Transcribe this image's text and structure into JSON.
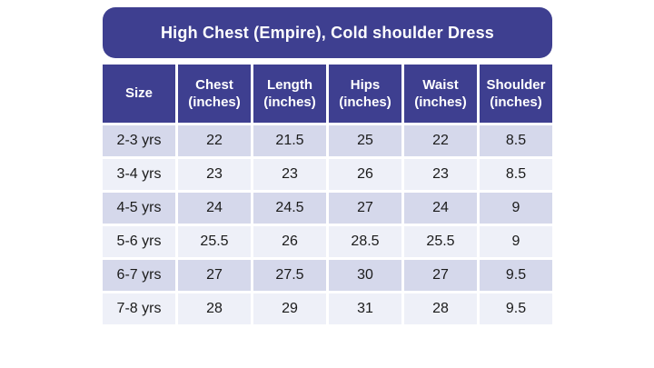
{
  "title": "High Chest (Empire), Cold shoulder Dress",
  "colors": {
    "page_background": "#FFFFFF",
    "banner_background": "#3E3F90",
    "header_background": "#3E3F90",
    "header_text": "#FFFFFF",
    "cell_text": "#1B1B1B",
    "row_odd": "#D5D8EB",
    "row_even": "#EEF0F8"
  },
  "chart_data": {
    "type": "table",
    "title": "High Chest (Empire), Cold shoulder Dress",
    "columns": [
      "Size",
      "Chest\n(inches)",
      "Length\n(inches)",
      "Hips\n(inches)",
      "Waist\n(inches)",
      "Shoulder\n(inches)"
    ],
    "rows": [
      [
        "2-3 yrs",
        "22",
        "21.5",
        "25",
        "22",
        "8.5"
      ],
      [
        "3-4 yrs",
        "23",
        "23",
        "26",
        "23",
        "8.5"
      ],
      [
        "4-5 yrs",
        "24",
        "24.5",
        "27",
        "24",
        "9"
      ],
      [
        "5-6 yrs",
        "25.5",
        "26",
        "28.5",
        "25.5",
        "9"
      ],
      [
        "6-7 yrs",
        "27",
        "27.5",
        "30",
        "27",
        "9.5"
      ],
      [
        "7-8 yrs",
        "28",
        "29",
        "31",
        "28",
        "9.5"
      ]
    ]
  }
}
